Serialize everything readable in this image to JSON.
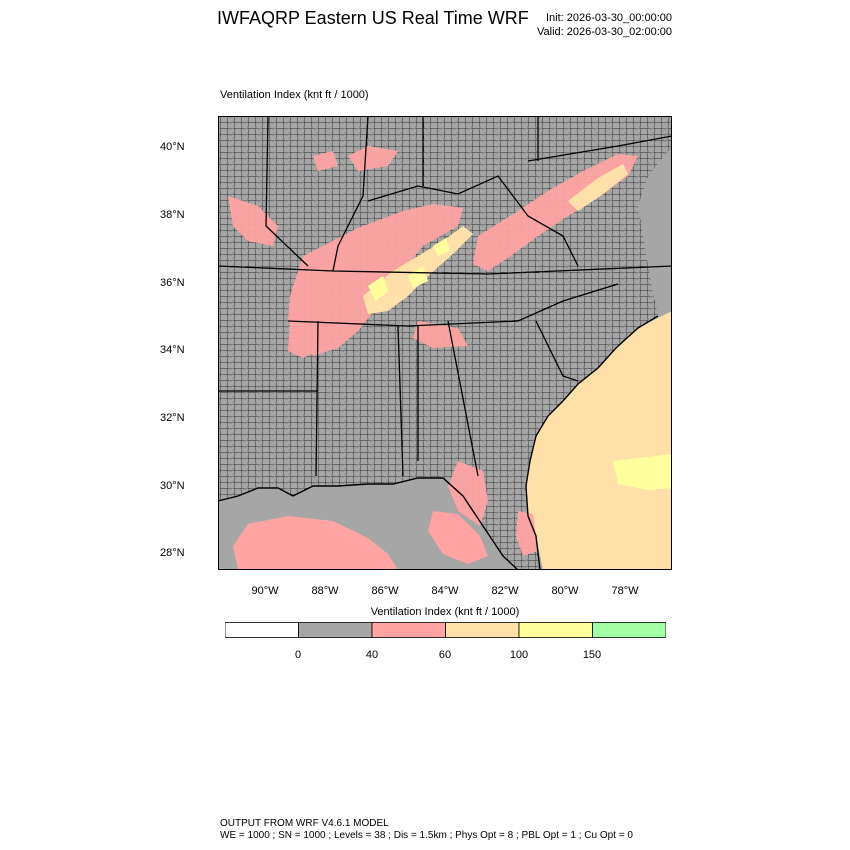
{
  "header": {
    "title": "IWFAQRP Eastern US Real Time WRF",
    "init": "Init: 2026-03-30_00:00:00",
    "valid": "Valid: 2026-03-30_02:00:00"
  },
  "field_label": "Ventilation Index   (knt ft / 1000)",
  "axes": {
    "lat_ticks": [
      "40°N",
      "38°N",
      "36°N",
      "34°N",
      "32°N",
      "30°N",
      "28°N"
    ],
    "lon_ticks": [
      "90°W",
      "88°W",
      "86°W",
      "84°W",
      "82°W",
      "80°W",
      "78°W"
    ]
  },
  "colorbar": {
    "title": "Ventilation Index  (knt ft / 1000)",
    "labels": [
      "0",
      "40",
      "60",
      "100",
      "150"
    ],
    "colors": [
      "#ffffff",
      "#a6a6a6",
      "#ffa3a3",
      "#ffe0a8",
      "#ffff9e",
      "#a3ffa3"
    ]
  },
  "colors": {
    "land": "#a6a6a6",
    "ocean": "#a6a6a6",
    "band_40_60": "#ffa3a3",
    "band_60_100": "#ffe0a8",
    "band_100_150": "#ffff9e",
    "borders": "#000000"
  },
  "footer": {
    "line1": "OUTPUT FROM WRF V4.6.1 MODEL",
    "line2": "WE = 1000 ; SN = 1000 ; Levels = 38 ; Dis = 1.5km ; Phys Opt = 8 ; PBL Opt = 1 ; Cu Opt = 0"
  }
}
